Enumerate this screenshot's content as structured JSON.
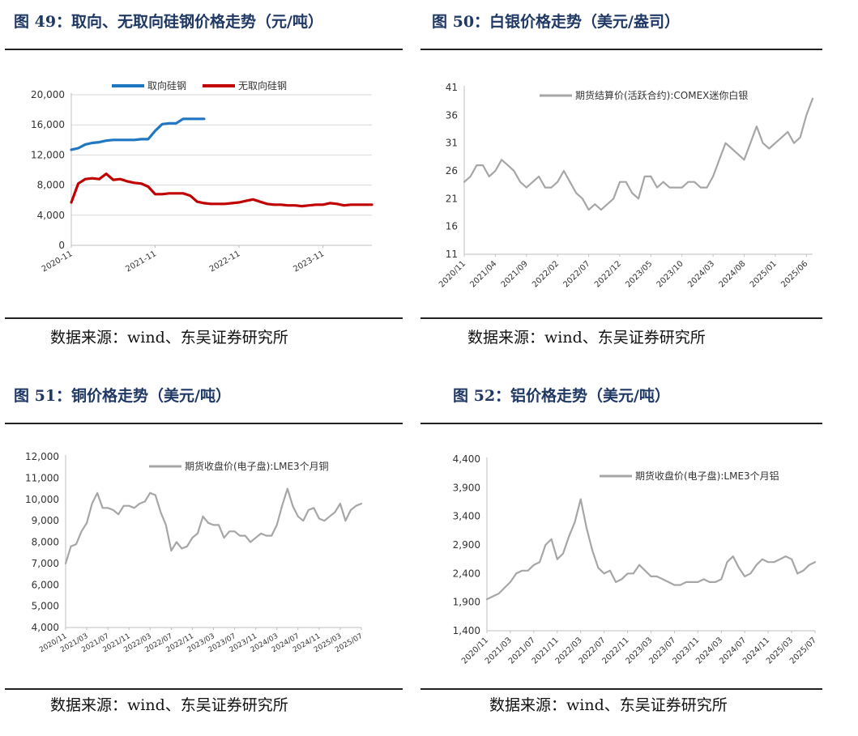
{
  "panels": [
    {
      "title": "图 49：取向、无取向硅钢价格走势（元/吨）",
      "source": "数据来源：wind、东吴证券研究所",
      "chart_data": {
        "type": "line",
        "title": "",
        "xlabel": "",
        "ylabel": "",
        "x_range": [
          "2020-11",
          "2024-06"
        ],
        "ylim": [
          0,
          20000
        ],
        "y_ticks": [
          0,
          4000,
          8000,
          12000,
          16000,
          20000
        ],
        "y_tick_labels": [
          "0",
          "4,000",
          "8,000",
          "12,000",
          "16,000",
          "20,000"
        ],
        "x_ticks": [
          "2020-11",
          "2021-11",
          "2022-11",
          "2023-11"
        ],
        "grid": true,
        "legend": "top-center",
        "series": [
          {
            "name": "取向硅钢",
            "color": "#1f77c4",
            "x": [
              "2020-11",
              "2020-12",
              "2021-01",
              "2021-02",
              "2021-03",
              "2021-04",
              "2021-05",
              "2021-06",
              "2021-07",
              "2021-08",
              "2021-09",
              "2021-10",
              "2021-11",
              "2021-12",
              "2022-01",
              "2022-02",
              "2022-03",
              "2022-04",
              "2022-05",
              "2022-06"
            ],
            "y": [
              12700,
              12900,
              13400,
              13600,
              13700,
              13900,
              14000,
              14000,
              14000,
              14000,
              14100,
              14100,
              15200,
              16100,
              16200,
              16200,
              16800,
              16800,
              16800,
              16800
            ]
          },
          {
            "name": "无取向硅钢",
            "color": "#c00000",
            "x": [
              "2020-11",
              "2020-12",
              "2021-01",
              "2021-02",
              "2021-03",
              "2021-04",
              "2021-05",
              "2021-06",
              "2021-07",
              "2021-08",
              "2021-09",
              "2021-10",
              "2021-11",
              "2021-12",
              "2022-01",
              "2022-02",
              "2022-03",
              "2022-04",
              "2022-05",
              "2022-06",
              "2022-07",
              "2022-08",
              "2022-09",
              "2022-10",
              "2022-11",
              "2022-12",
              "2023-01",
              "2023-02",
              "2023-03",
              "2023-04",
              "2023-05",
              "2023-06",
              "2023-07",
              "2023-08",
              "2023-09",
              "2023-10",
              "2023-11",
              "2023-12",
              "2024-01",
              "2024-02",
              "2024-03",
              "2024-04",
              "2024-05",
              "2024-06"
            ],
            "y": [
              5700,
              8200,
              8800,
              8900,
              8800,
              9500,
              8700,
              8800,
              8500,
              8300,
              8200,
              7800,
              6800,
              6800,
              6900,
              6900,
              6900,
              6600,
              5800,
              5600,
              5500,
              5500,
              5500,
              5600,
              5700,
              5900,
              6100,
              5800,
              5500,
              5400,
              5400,
              5300,
              5300,
              5200,
              5300,
              5400,
              5400,
              5600,
              5500,
              5300,
              5400,
              5400,
              5400,
              5400
            ]
          }
        ]
      }
    },
    {
      "title": "图 50：白银价格走势（美元/盎司）",
      "source": "数据来源：wind、东吴证券研究所",
      "chart_data": {
        "type": "line",
        "title": "",
        "xlabel": "",
        "ylabel": "",
        "ylim": [
          11,
          41
        ],
        "y_ticks": [
          11,
          16,
          21,
          26,
          31,
          36,
          41
        ],
        "x_ticks": [
          "2020/11",
          "2021/04",
          "2021/09",
          "2022/02",
          "2022/07",
          "2022/12",
          "2023/05",
          "2023/10",
          "2024/03",
          "2024/08",
          "2025/01",
          "2025/06"
        ],
        "grid": false,
        "legend": "top-right",
        "series": [
          {
            "name": "期货结算价(活跃合约):COMEX迷你白银",
            "color": "#a6a6a6",
            "x": [
              "2020-11",
              "2020-12",
              "2021-01",
              "2021-02",
              "2021-03",
              "2021-04",
              "2021-05",
              "2021-06",
              "2021-07",
              "2021-08",
              "2021-09",
              "2021-10",
              "2021-11",
              "2021-12",
              "2022-01",
              "2022-02",
              "2022-03",
              "2022-04",
              "2022-05",
              "2022-06",
              "2022-07",
              "2022-08",
              "2022-09",
              "2022-10",
              "2022-11",
              "2022-12",
              "2023-01",
              "2023-02",
              "2023-03",
              "2023-04",
              "2023-05",
              "2023-06",
              "2023-07",
              "2023-08",
              "2023-09",
              "2023-10",
              "2023-11",
              "2023-12",
              "2024-01",
              "2024-02",
              "2024-03",
              "2024-04",
              "2024-05",
              "2024-06",
              "2024-07",
              "2024-08",
              "2024-09",
              "2024-10",
              "2024-11",
              "2024-12",
              "2025-01",
              "2025-02",
              "2025-03",
              "2025-04",
              "2025-05",
              "2025-06",
              "2025-07"
            ],
            "y": [
              24,
              25,
              27,
              27,
              25,
              26,
              28,
              27,
              26,
              24,
              23,
              24,
              25,
              23,
              23,
              24,
              26,
              24,
              22,
              21,
              19,
              20,
              19,
              20,
              21,
              24,
              24,
              22,
              21,
              25,
              25,
              23,
              24,
              23,
              23,
              23,
              24,
              24,
              23,
              23,
              25,
              28,
              31,
              30,
              29,
              28,
              31,
              34,
              31,
              30,
              31,
              32,
              33,
              31,
              32,
              36,
              39
            ]
          }
        ]
      }
    },
    {
      "title": "图 51：铜价格走势（美元/吨）",
      "source": "数据来源：wind、东吴证券研究所",
      "chart_data": {
        "type": "line",
        "title": "",
        "xlabel": "",
        "ylabel": "",
        "ylim": [
          4000,
          12000
        ],
        "y_ticks": [
          4000,
          5000,
          6000,
          7000,
          8000,
          9000,
          10000,
          11000,
          12000
        ],
        "y_tick_labels": [
          "4,000",
          "5,000",
          "6,000",
          "7,000",
          "8,000",
          "9,000",
          "10,000",
          "11,000",
          "12,000"
        ],
        "x_ticks": [
          "2020/11",
          "2021/03",
          "2021/07",
          "2021/11",
          "2022/03",
          "2022/07",
          "2022/11",
          "2023/03",
          "2023/07",
          "2023/11",
          "2024/03",
          "2024/07",
          "2024/11",
          "2025/03",
          "2025/07"
        ],
        "grid": false,
        "legend": "top-right",
        "series": [
          {
            "name": "期货收盘价(电子盘):LME3个月铜",
            "color": "#a6a6a6",
            "x": [
              "2020-11",
              "2020-12",
              "2021-01",
              "2021-02",
              "2021-03",
              "2021-04",
              "2021-05",
              "2021-06",
              "2021-07",
              "2021-08",
              "2021-09",
              "2021-10",
              "2021-11",
              "2021-12",
              "2022-01",
              "2022-02",
              "2022-03",
              "2022-04",
              "2022-05",
              "2022-06",
              "2022-07",
              "2022-08",
              "2022-09",
              "2022-10",
              "2022-11",
              "2022-12",
              "2023-01",
              "2023-02",
              "2023-03",
              "2023-04",
              "2023-05",
              "2023-06",
              "2023-07",
              "2023-08",
              "2023-09",
              "2023-10",
              "2023-11",
              "2023-12",
              "2024-01",
              "2024-02",
              "2024-03",
              "2024-04",
              "2024-05",
              "2024-06",
              "2024-07",
              "2024-08",
              "2024-09",
              "2024-10",
              "2024-11",
              "2024-12",
              "2025-01",
              "2025-02",
              "2025-03",
              "2025-04",
              "2025-05",
              "2025-06",
              "2025-07"
            ],
            "y": [
              7000,
              7800,
              7900,
              8500,
              8900,
              9800,
              10300,
              9600,
              9600,
              9500,
              9300,
              9700,
              9700,
              9600,
              9800,
              9900,
              10300,
              10200,
              9400,
              8800,
              7600,
              8000,
              7700,
              7800,
              8200,
              8400,
              9200,
              8900,
              8800,
              8800,
              8200,
              8500,
              8500,
              8300,
              8300,
              8000,
              8200,
              8400,
              8300,
              8300,
              8800,
              9700,
              10500,
              9700,
              9200,
              9000,
              9500,
              9600,
              9100,
              9000,
              9200,
              9400,
              9800,
              9000,
              9500,
              9700,
              9800
            ]
          }
        ]
      }
    },
    {
      "title": "图 52：铝价格走势（美元/吨）",
      "source": "数据来源：wind、东吴证券研究所",
      "chart_data": {
        "type": "line",
        "title": "",
        "xlabel": "",
        "ylabel": "",
        "ylim": [
          1400,
          4400
        ],
        "y_ticks": [
          1400,
          1900,
          2400,
          2900,
          3400,
          3900,
          4400
        ],
        "y_tick_labels": [
          "1,400",
          "1,900",
          "2,400",
          "2,900",
          "3,400",
          "3,900",
          "4,400"
        ],
        "x_ticks": [
          "2020/11",
          "2021/03",
          "2021/07",
          "2021/11",
          "2022/03",
          "2022/07",
          "2022/11",
          "2023/03",
          "2023/07",
          "2023/11",
          "2024/03",
          "2024/07",
          "2024/11",
          "2025/03",
          "2025/07"
        ],
        "grid": false,
        "legend": "top-right",
        "series": [
          {
            "name": "期货收盘价(电子盘):LME3个月铝",
            "color": "#a6a6a6",
            "x": [
              "2020-11",
              "2020-12",
              "2021-01",
              "2021-02",
              "2021-03",
              "2021-04",
              "2021-05",
              "2021-06",
              "2021-07",
              "2021-08",
              "2021-09",
              "2021-10",
              "2021-11",
              "2021-12",
              "2022-01",
              "2022-02",
              "2022-03",
              "2022-04",
              "2022-05",
              "2022-06",
              "2022-07",
              "2022-08",
              "2022-09",
              "2022-10",
              "2022-11",
              "2022-12",
              "2023-01",
              "2023-02",
              "2023-03",
              "2023-04",
              "2023-05",
              "2023-06",
              "2023-07",
              "2023-08",
              "2023-09",
              "2023-10",
              "2023-11",
              "2023-12",
              "2024-01",
              "2024-02",
              "2024-03",
              "2024-04",
              "2024-05",
              "2024-06",
              "2024-07",
              "2024-08",
              "2024-09",
              "2024-10",
              "2024-11",
              "2024-12",
              "2025-01",
              "2025-02",
              "2025-03",
              "2025-04",
              "2025-05",
              "2025-06",
              "2025-07"
            ],
            "y": [
              1950,
              2000,
              2050,
              2150,
              2250,
              2400,
              2450,
              2450,
              2550,
              2600,
              2900,
              3000,
              2650,
              2750,
              3050,
              3300,
              3700,
              3200,
              2800,
              2500,
              2400,
              2450,
              2250,
              2300,
              2400,
              2400,
              2550,
              2450,
              2350,
              2350,
              2300,
              2250,
              2200,
              2200,
              2250,
              2250,
              2250,
              2300,
              2250,
              2250,
              2300,
              2600,
              2700,
              2500,
              2350,
              2400,
              2550,
              2650,
              2600,
              2600,
              2650,
              2700,
              2650,
              2400,
              2450,
              2550,
              2600
            ]
          }
        ]
      }
    }
  ]
}
